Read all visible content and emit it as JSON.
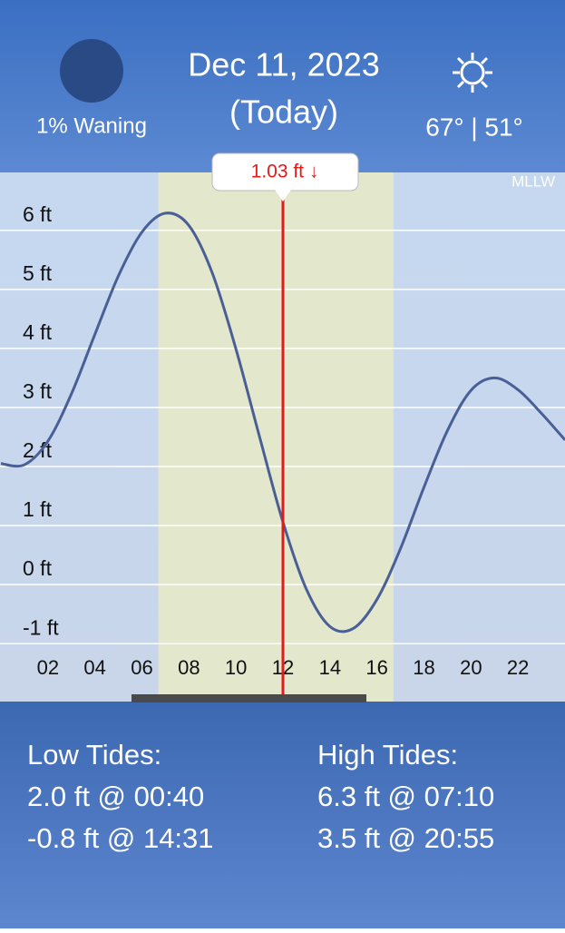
{
  "header": {
    "moon_label": "1% Waning",
    "date": "Dec 11, 2023",
    "today": "(Today)",
    "weather": "67° | 51°"
  },
  "chart_data": {
    "type": "line",
    "datum": "MLLW",
    "x": [
      0,
      1,
      2,
      3,
      4,
      5,
      6,
      7,
      8,
      9,
      10,
      11,
      12,
      13,
      14,
      15,
      16,
      17,
      18,
      19,
      20,
      21,
      22,
      23,
      24
    ],
    "series": [
      {
        "name": "Tide",
        "color": "#4a5f96",
        "values": [
          2.05,
          2.03,
          2.43,
          3.23,
          4.24,
          5.23,
          5.97,
          6.29,
          6.08,
          5.27,
          3.99,
          2.51,
          1.06,
          -0.08,
          -0.71,
          -0.74,
          -0.25,
          0.61,
          1.65,
          2.61,
          3.29,
          3.5,
          3.3,
          2.9,
          2.45
        ]
      }
    ],
    "xlim": [
      0,
      24
    ],
    "xticks": [
      {
        "value": 2,
        "label": "02"
      },
      {
        "value": 4,
        "label": "04"
      },
      {
        "value": 6,
        "label": "06"
      },
      {
        "value": 8,
        "label": "08"
      },
      {
        "value": 10,
        "label": "10"
      },
      {
        "value": 12,
        "label": "12"
      },
      {
        "value": 14,
        "label": "14"
      },
      {
        "value": 16,
        "label": "16"
      },
      {
        "value": 18,
        "label": "18"
      },
      {
        "value": 20,
        "label": "20"
      },
      {
        "value": 22,
        "label": "22"
      }
    ],
    "ylim": [
      -1.98,
      6.98
    ],
    "yticks": [
      {
        "value": 6,
        "label": "6 ft"
      },
      {
        "value": 5,
        "label": "5 ft"
      },
      {
        "value": 4,
        "label": "4 ft"
      },
      {
        "value": 3,
        "label": "3 ft"
      },
      {
        "value": 2,
        "label": "2 ft"
      },
      {
        "value": 1,
        "label": "1 ft"
      },
      {
        "value": 0,
        "label": "0 ft"
      },
      {
        "value": -1,
        "label": "-1 ft"
      }
    ],
    "grid": true,
    "daylight": [
      6.7,
      16.7
    ],
    "current": {
      "x": 12.0,
      "value": 1.03,
      "label": "1.03 ft ↓",
      "color": "#e01b1b"
    }
  },
  "tides": {
    "low_title": "Low Tides:",
    "low": [
      "2.0 ft @ 00:40",
      "-0.8 ft @ 14:31"
    ],
    "high_title": "High Tides:",
    "high": [
      "6.3 ft @ 07:10",
      "3.5 ft @ 20:55"
    ]
  }
}
